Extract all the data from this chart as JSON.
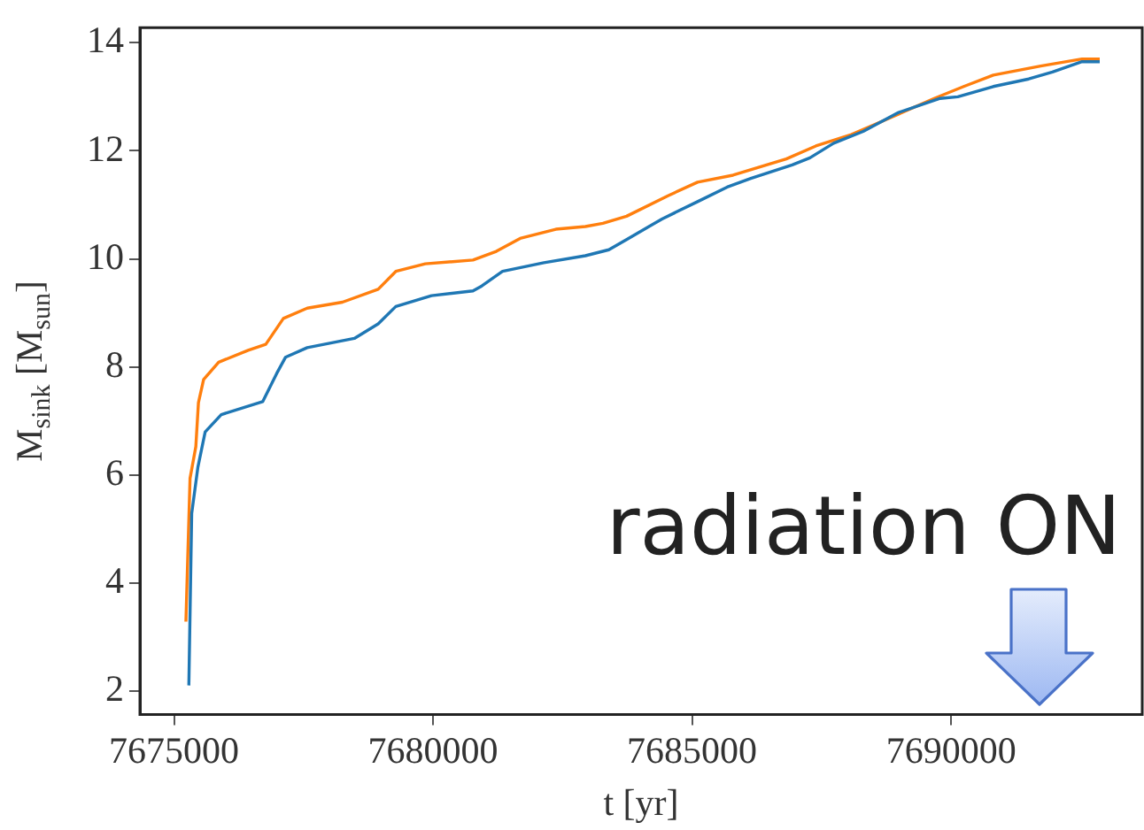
{
  "chart_data": {
    "type": "line",
    "xlabel": "t [yr]",
    "ylabel": "M$_{sink}$ [M$_{sun}$]",
    "xlim": [
      7674340,
      7693690
    ],
    "ylim": [
      1.57,
      14.28
    ],
    "xticks": [
      7675000,
      7680000,
      7685000,
      7690000
    ],
    "yticks": [
      2,
      4,
      6,
      8,
      10,
      12,
      14
    ],
    "grid": false,
    "legend": false,
    "marker": "none",
    "line_style": "solid",
    "annotations": [
      "radiation ON"
    ],
    "series": [
      {
        "color": "#1f77b4",
        "x": [
          7675285,
          7675340,
          7675460,
          7675600,
          7675910,
          7676710,
          7676980,
          7677150,
          7677570,
          7678480,
          7678940,
          7679280,
          7679970,
          7680770,
          7680940,
          7681340,
          7682140,
          7682940,
          7683393,
          7683735,
          7684420,
          7685106,
          7685677,
          7686133,
          7686933,
          7687275,
          7687732,
          7688303,
          7688988,
          7689788,
          7690130,
          7690815,
          7691500,
          7691957,
          7692528,
          7692870
        ],
        "values": [
          2.11,
          5.29,
          6.15,
          6.8,
          7.12,
          7.36,
          7.88,
          8.18,
          8.36,
          8.53,
          8.8,
          9.12,
          9.32,
          9.41,
          9.5,
          9.77,
          9.93,
          10.06,
          10.17,
          10.36,
          10.74,
          11.06,
          11.33,
          11.49,
          11.74,
          11.87,
          12.14,
          12.36,
          12.71,
          12.97,
          13.0,
          13.19,
          13.33,
          13.46,
          13.65,
          13.65
        ]
      },
      {
        "color": "#ff7f0e",
        "x": [
          7675228,
          7675308,
          7675420,
          7675470,
          7675570,
          7675860,
          7676430,
          7676770,
          7677110,
          7677570,
          7678250,
          7678940,
          7679280,
          7679850,
          7680770,
          7681220,
          7681680,
          7682370,
          7682940,
          7683278,
          7683735,
          7684535,
          7685106,
          7685790,
          7686818,
          7687390,
          7688073,
          7688870,
          7689674,
          7690244,
          7690815,
          7691729,
          7692528,
          7692870
        ],
        "values": [
          3.29,
          5.94,
          6.53,
          7.34,
          7.77,
          8.09,
          8.31,
          8.42,
          8.9,
          9.09,
          9.2,
          9.44,
          9.77,
          9.91,
          9.98,
          10.14,
          10.38,
          10.55,
          10.6,
          10.66,
          10.79,
          11.17,
          11.42,
          11.55,
          11.85,
          12.09,
          12.3,
          12.63,
          12.97,
          13.19,
          13.4,
          13.57,
          13.7,
          13.7
        ]
      }
    ]
  }
}
